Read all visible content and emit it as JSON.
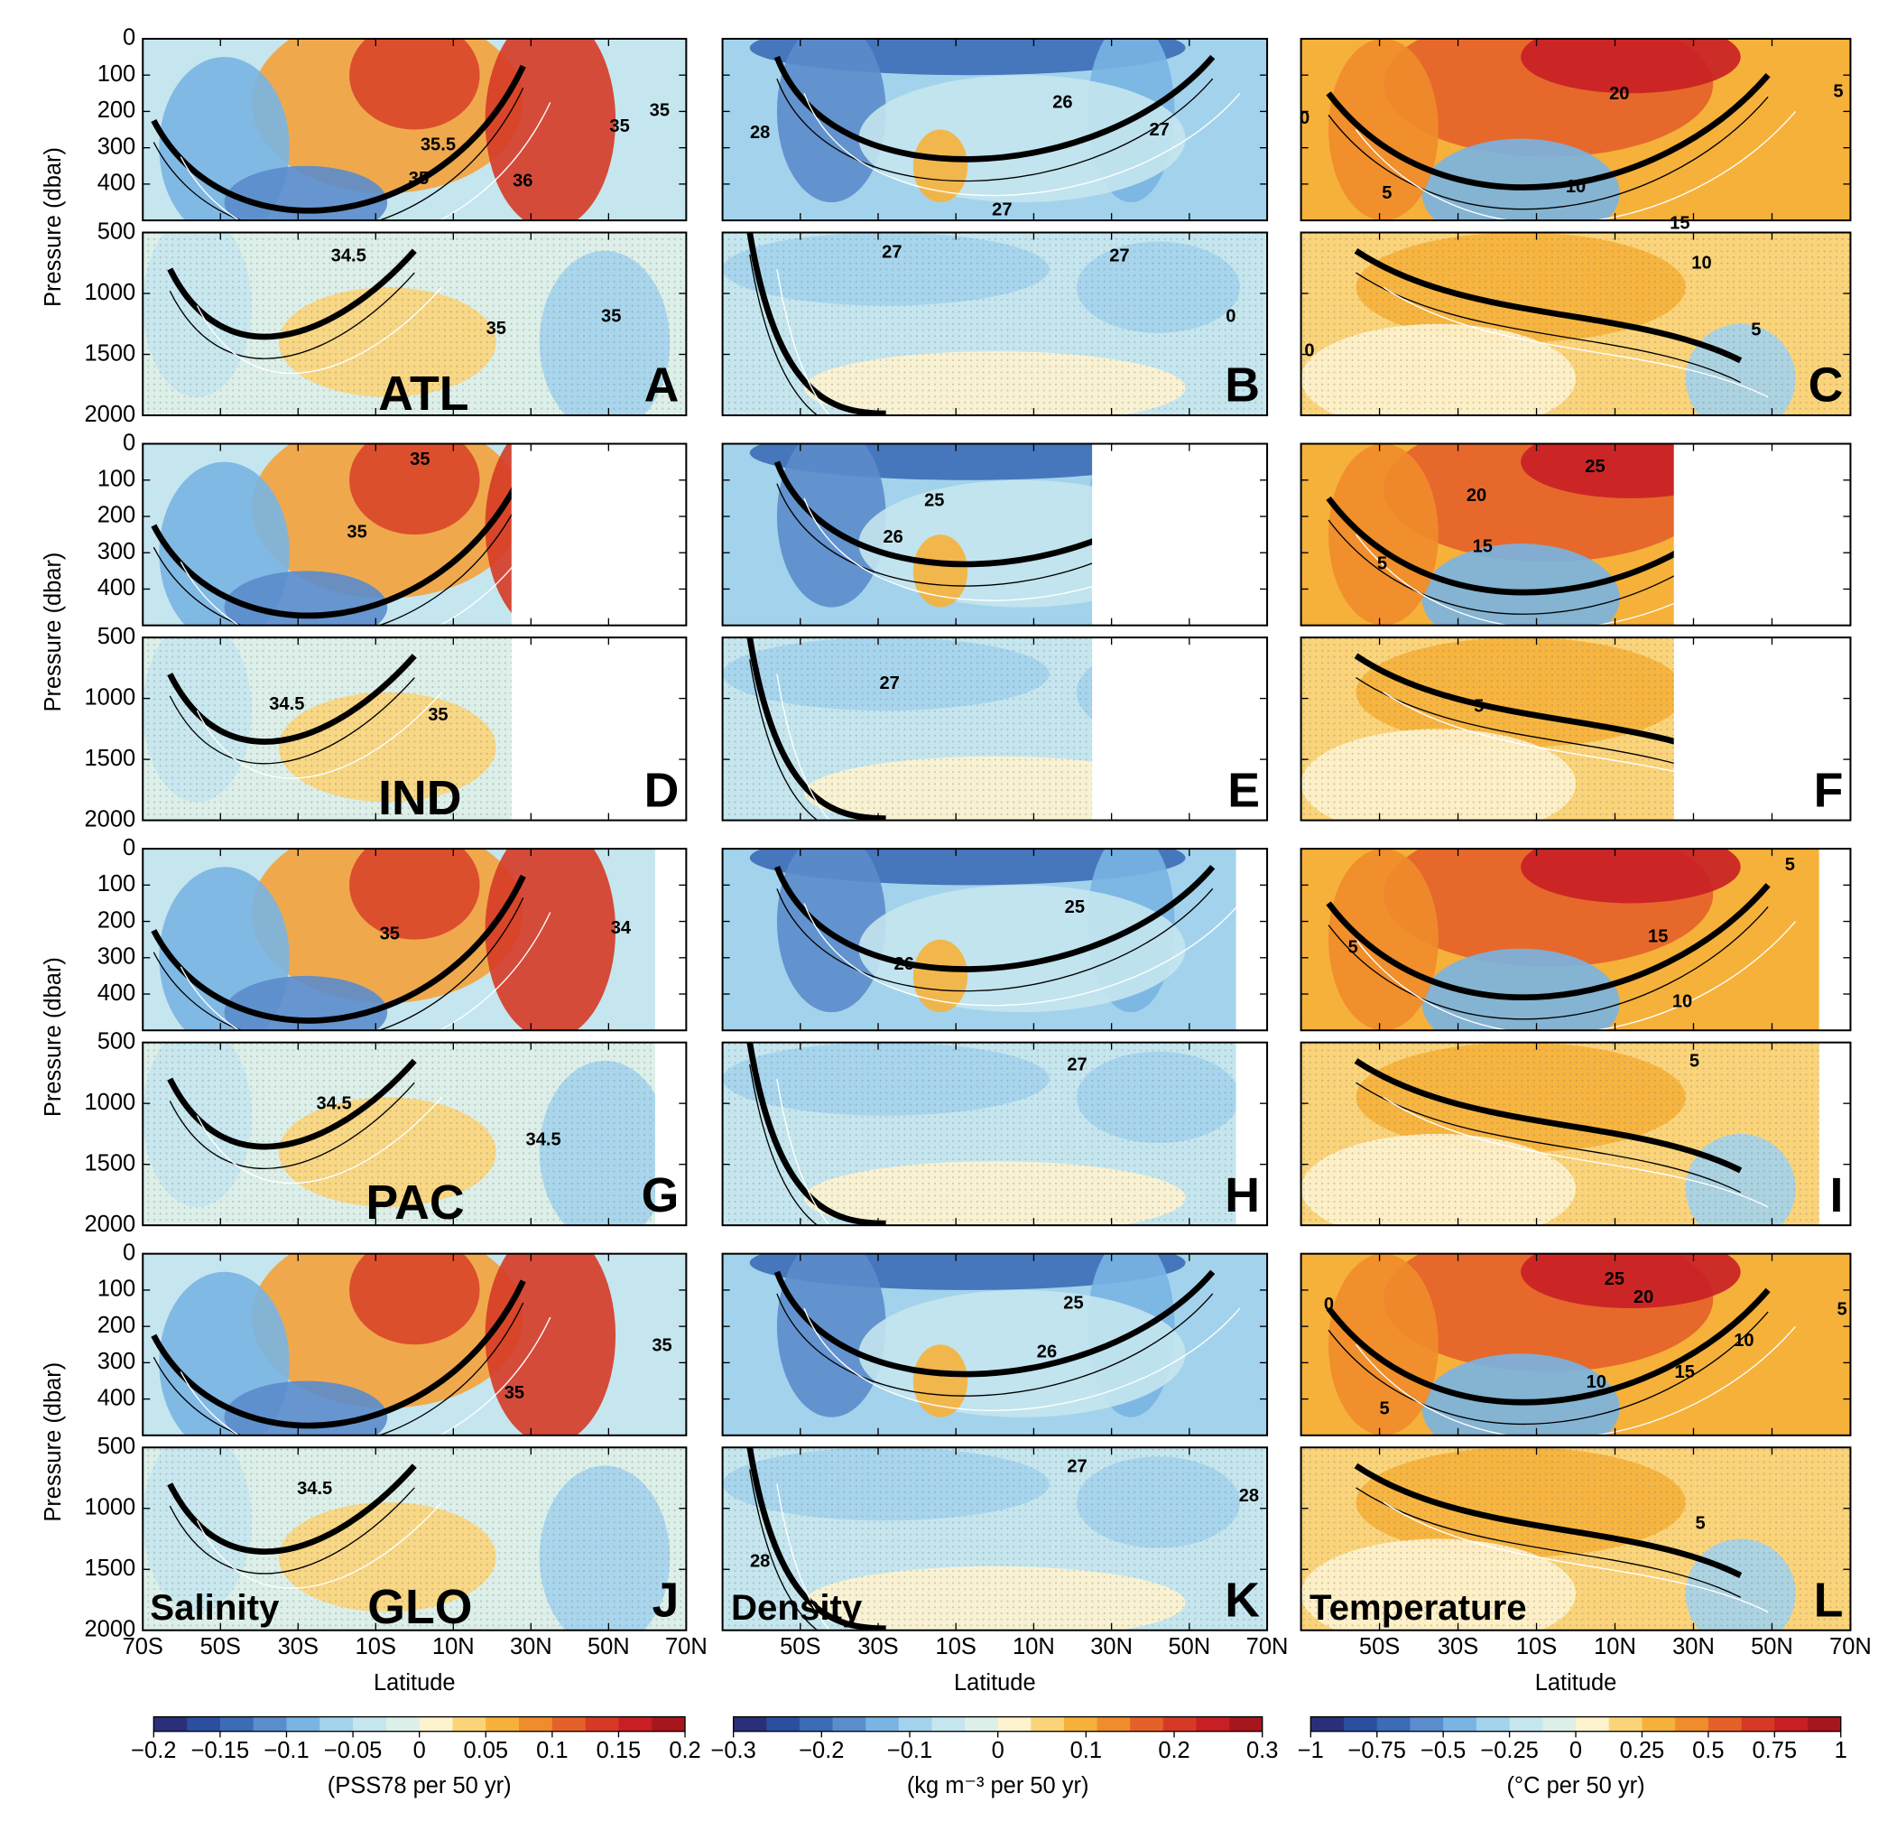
{
  "chart_data": {
    "type": "contour",
    "xlabel": "Latitude",
    "ylabel": "Pressure (dbar)",
    "xlim": [
      -70,
      70
    ],
    "xticks": [
      {
        "value": -70,
        "label": "70S"
      },
      {
        "value": -50,
        "label": "50S"
      },
      {
        "value": -30,
        "label": "30S"
      },
      {
        "value": -10,
        "label": "10S"
      },
      {
        "value": 10,
        "label": "10N"
      },
      {
        "value": 30,
        "label": "30N"
      },
      {
        "value": 50,
        "label": "50N"
      },
      {
        "value": 70,
        "label": "70N"
      }
    ],
    "ylim_top": [
      0,
      500
    ],
    "yticks_top": [
      0,
      100,
      200,
      300,
      400
    ],
    "ylim_bottom": [
      500,
      2000
    ],
    "yticks_bottom": [
      500,
      1000,
      1500,
      2000
    ],
    "basins": [
      "ATL",
      "IND",
      "PAC",
      "GLO"
    ],
    "north_edge": [
      70,
      25,
      62,
      70
    ],
    "variables": [
      "Salinity",
      "Density",
      "Temperature"
    ],
    "panels": [
      {
        "letter": "A",
        "contour_labels": [
          35.5,
          35,
          36,
          35,
          35,
          34.5,
          35,
          35
        ]
      },
      {
        "letter": "B",
        "contour_labels": [
          28,
          26,
          27,
          27,
          27,
          27,
          0
        ]
      },
      {
        "letter": "C",
        "contour_labels": [
          20,
          5,
          0,
          10,
          15,
          5,
          10,
          5,
          0
        ]
      },
      {
        "letter": "D",
        "contour_labels": [
          35,
          35,
          34.5,
          35
        ]
      },
      {
        "letter": "E",
        "contour_labels": [
          25,
          26,
          27
        ]
      },
      {
        "letter": "F",
        "contour_labels": [
          25,
          20,
          15,
          5,
          5
        ]
      },
      {
        "letter": "G",
        "contour_labels": [
          35,
          34,
          34.5,
          34.5
        ]
      },
      {
        "letter": "H",
        "contour_labels": [
          25,
          26,
          27
        ]
      },
      {
        "letter": "I",
        "contour_labels": [
          5,
          15,
          5,
          10,
          5
        ]
      },
      {
        "letter": "J",
        "contour_labels": [
          35,
          34.5,
          35
        ]
      },
      {
        "letter": "K",
        "contour_labels": [
          25,
          26,
          27,
          28,
          28
        ]
      },
      {
        "letter": "L",
        "contour_labels": [
          25,
          20,
          5,
          0,
          10,
          15,
          10,
          5,
          5
        ]
      }
    ],
    "colorbars": [
      {
        "label": "(PSS78 per 50 yr)",
        "lim": [
          -0.2,
          0.2
        ],
        "ticks": [
          {
            "value": -0.2,
            "label": "−0.2"
          },
          {
            "value": -0.15,
            "label": "−0.15"
          },
          {
            "value": -0.1,
            "label": "−0.1"
          },
          {
            "value": -0.05,
            "label": "−0.05"
          },
          0,
          0.05,
          0.1,
          0.15,
          0.2
        ],
        "colors": [
          "#2b2f7a",
          "#2c4ea0",
          "#3c6cb6",
          "#5b8ccb",
          "#79b4e3",
          "#a3d3ec",
          "#c5e6ee",
          "#dcefe8",
          "#fdf3cf",
          "#fbd47a",
          "#f6b13a",
          "#ef8c2b",
          "#e4622a",
          "#d63a26",
          "#c81f25",
          "#a8161d"
        ]
      },
      {
        "label": "(kg m⁻³ per 50 yr)",
        "lim": [
          -0.3,
          0.3
        ],
        "ticks": [
          {
            "value": -0.3,
            "label": "−0.3"
          },
          {
            "value": -0.2,
            "label": "−0.2"
          },
          {
            "value": -0.1,
            "label": "−0.1"
          },
          0,
          0.1,
          0.2,
          0.3
        ],
        "colors": [
          "#2b2f7a",
          "#2c4ea0",
          "#3c6cb6",
          "#5b8ccb",
          "#79b4e3",
          "#a3d3ec",
          "#c5e6ee",
          "#dcefe8",
          "#fdf3cf",
          "#fbd47a",
          "#f6b13a",
          "#ef8c2b",
          "#e4622a",
          "#d63a26",
          "#c81f25",
          "#a8161d"
        ]
      },
      {
        "label": "(°C per 50 yr)",
        "lim": [
          -1,
          1
        ],
        "ticks": [
          {
            "value": -1,
            "label": "−1"
          },
          {
            "value": -0.75,
            "label": "−0.75"
          },
          {
            "value": -0.5,
            "label": "−0.5"
          },
          {
            "value": -0.25,
            "label": "−0.25"
          },
          0,
          0.25,
          0.5,
          0.75,
          1
        ],
        "colors": [
          "#2b2f7a",
          "#2c4ea0",
          "#3c6cb6",
          "#5b8ccb",
          "#79b4e3",
          "#a3d3ec",
          "#c5e6ee",
          "#dcefe8",
          "#fdf3cf",
          "#fbd47a",
          "#f6b13a",
          "#ef8c2b",
          "#e4622a",
          "#d63a26",
          "#c81f25",
          "#a8161d"
        ]
      }
    ]
  }
}
